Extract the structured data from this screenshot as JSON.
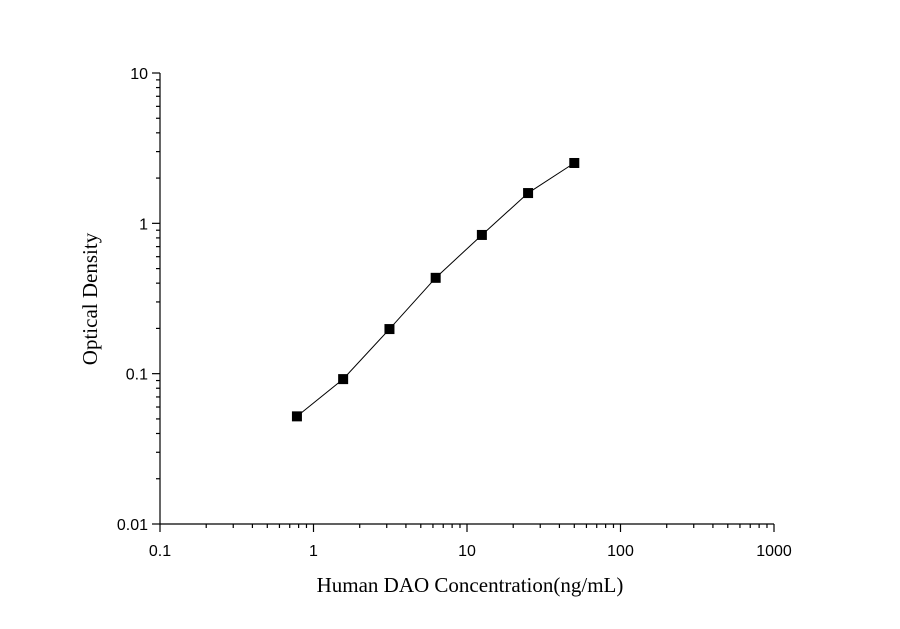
{
  "chart_data": {
    "type": "scatter-line",
    "x_label": "Human DAO Concentration(ng/mL)",
    "y_label": "Optical Density",
    "x": [
      0.78,
      1.56,
      3.125,
      6.25,
      12.5,
      25,
      50
    ],
    "series": [
      {
        "color": "#000000",
        "values": [
          0.052,
          0.092,
          0.198,
          0.434,
          0.837,
          1.59,
          2.52
        ]
      }
    ],
    "xlim": [
      0.1,
      1000
    ],
    "ylim": [
      0.01,
      10
    ],
    "xticks": [
      0.1,
      1,
      10,
      100,
      1000
    ],
    "yticks": [
      0.01,
      0.1,
      1,
      10
    ],
    "xscale": "log",
    "yscale": "log",
    "minor_ticks": true
  }
}
